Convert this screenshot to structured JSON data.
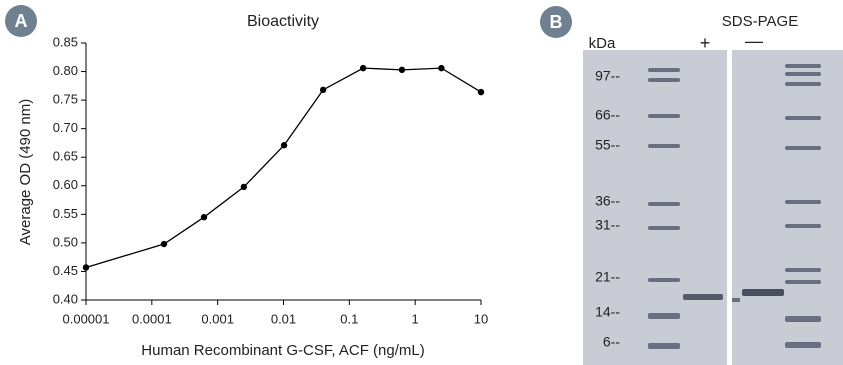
{
  "chart_data": {
    "type": "line",
    "title": "Bioactivity",
    "x_label": "Human Recombinant G-CSF, ACF (ng/mL)",
    "y_label": "Average OD (490 nm)",
    "xscale": "log",
    "color": "#000000",
    "x": [
      1e-05,
      0.000153,
      0.00062,
      0.0025,
      0.0102,
      0.04,
      0.162,
      0.63,
      2.5,
      10
    ],
    "values": [
      0.457,
      0.498,
      0.545,
      0.598,
      0.671,
      0.768,
      0.806,
      0.803,
      0.806,
      0.764
    ],
    "xlim": [
      1e-05,
      10
    ],
    "xticks": [
      {
        "value": 1e-05,
        "label": "0.00001"
      },
      {
        "value": 0.0001,
        "label": "0.0001"
      },
      {
        "value": 0.001,
        "label": "0.001"
      },
      {
        "value": 0.01,
        "label": "0.01"
      },
      {
        "value": 0.1,
        "label": "0.1"
      },
      {
        "value": 1,
        "label": "1"
      },
      {
        "value": 10,
        "label": "10"
      }
    ],
    "ylim": [
      0.4,
      0.85
    ],
    "yticks": [
      {
        "value": 0.4,
        "label": "0.40"
      },
      {
        "value": 0.45,
        "label": "0.45"
      },
      {
        "value": 0.5,
        "label": "0.50"
      },
      {
        "value": 0.55,
        "label": "0.55"
      },
      {
        "value": 0.6,
        "label": "0.60"
      },
      {
        "value": 0.65,
        "label": "0.65"
      },
      {
        "value": 0.7,
        "label": "0.70"
      },
      {
        "value": 0.75,
        "label": "0.75"
      },
      {
        "value": 0.8,
        "label": "0.80"
      },
      {
        "value": 0.85,
        "label": "0.85"
      }
    ]
  },
  "panel_labels": [
    "A",
    "B"
  ],
  "gel": {
    "title": "SDS-PAGE",
    "unit_label": "kDa",
    "lane_labels": [
      "+",
      "—"
    ],
    "markers": [
      "97--",
      "66--",
      "55--",
      "36--",
      "31--",
      "21--",
      "14--",
      "6--"
    ]
  }
}
